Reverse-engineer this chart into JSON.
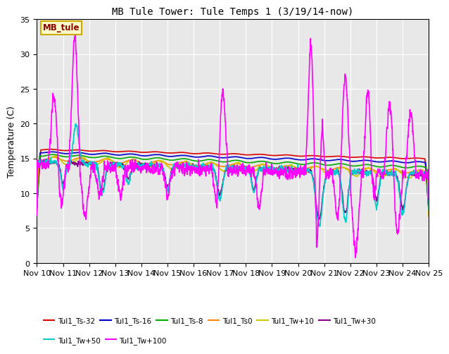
{
  "title": "MB Tule Tower: Tule Temps 1 (3/19/14-now)",
  "ylabel": "Temperature (C)",
  "ylim": [
    0,
    35
  ],
  "yticks": [
    0,
    5,
    10,
    15,
    20,
    25,
    30,
    35
  ],
  "bg_color": "#ffffff",
  "plot_bg": "#e8e8e8",
  "annotation_text": "MB_tule",
  "annotation_bg": "#ffffcc",
  "annotation_border": "#ccaa00",
  "annotation_text_color": "#880000",
  "series": [
    {
      "label": "Tul1_Ts-32",
      "color": "#dd0000",
      "lw": 1.2
    },
    {
      "label": "Tul1_Ts-16",
      "color": "#0000cc",
      "lw": 1.2
    },
    {
      "label": "Tul1_Ts-8",
      "color": "#00aa00",
      "lw": 1.2
    },
    {
      "label": "Tul1_Ts0",
      "color": "#ff8800",
      "lw": 1.2
    },
    {
      "label": "Tul1_Tw+10",
      "color": "#cccc00",
      "lw": 1.2
    },
    {
      "label": "Tul1_Tw+30",
      "color": "#880088",
      "lw": 1.2
    },
    {
      "label": "Tul1_Tw+50",
      "color": "#00cccc",
      "lw": 1.2
    },
    {
      "label": "Tul1_Tw+100",
      "color": "#ff00ff",
      "lw": 1.2
    }
  ],
  "xtick_labels": [
    "Nov 10",
    "Nov 11",
    "Nov 12",
    "Nov 13",
    "Nov 14",
    "Nov 15",
    "Nov 16",
    "Nov 17",
    "Nov 18",
    "Nov 19",
    "Nov 20",
    "Nov 21",
    "Nov 22",
    "Nov 23",
    "Nov 24",
    "Nov 25"
  ],
  "legend_ncol1": 6,
  "legend_ncol2": 2
}
